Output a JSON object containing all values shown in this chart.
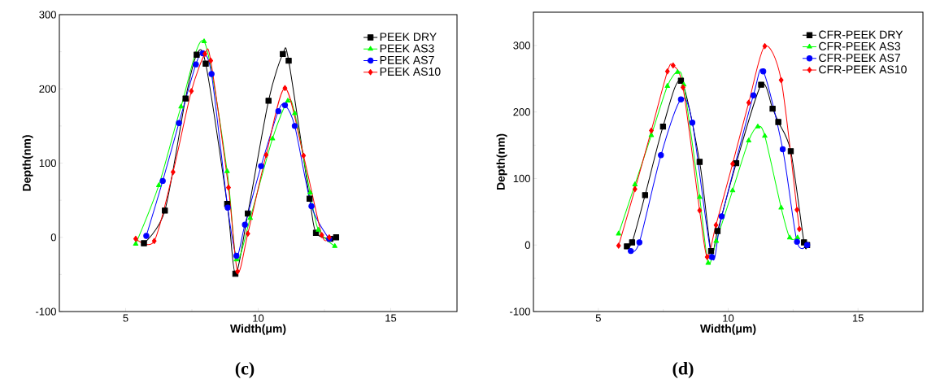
{
  "chart_data": [
    {
      "type": "line",
      "xlabel": "Width(μm)",
      "ylabel": "Depth(nm)",
      "annotations": [
        "(c)"
      ],
      "xlim": [
        2.5,
        17.5
      ],
      "ylim": [
        -100,
        300
      ],
      "xticks": [
        5,
        10,
        15
      ],
      "yticks": [
        -100,
        0,
        100,
        200,
        300
      ],
      "legend": "top right",
      "grid": false,
      "line_style": "solid",
      "series": [
        {
          "name": "PEEK DRY",
          "color": "#000000",
          "marker": "square",
          "x": [
            5.69,
            6.48,
            7.26,
            7.68,
            8.02,
            8.83,
            9.14,
            9.61,
            10.39,
            10.93,
            11.15,
            11.94,
            12.18,
            12.72,
            12.94
          ],
          "values": [
            -8,
            36,
            187,
            246,
            234,
            45,
            -49,
            32,
            184,
            247,
            238,
            52,
            6,
            -2,
            0
          ]
        },
        {
          "name": "PEEK AS3",
          "color": "#00ff00",
          "marker": "triangle",
          "x": [
            5.38,
            6.25,
            7.09,
            7.96,
            8.83,
            9.18,
            9.7,
            10.54,
            11.12,
            11.38,
            11.96,
            12.27,
            12.89
          ],
          "values": [
            -9,
            70,
            176,
            264,
            89,
            -30,
            26,
            133,
            184,
            167,
            60,
            10,
            -12
          ]
        },
        {
          "name": "PEEK AS7",
          "color": "#0000ff",
          "marker": "circle",
          "x": [
            5.78,
            6.4,
            7.01,
            7.65,
            7.91,
            8.24,
            8.85,
            9.18,
            9.5,
            10.11,
            10.76,
            11.01,
            11.38,
            12.01,
            12.68
          ],
          "values": [
            2,
            76,
            154,
            233,
            248,
            220,
            40,
            -25,
            17,
            96,
            170,
            178,
            150,
            42,
            -2
          ]
        },
        {
          "name": "PEEK AS10",
          "color": "#ff0000",
          "marker": "diamond",
          "x": [
            5.38,
            6.08,
            6.79,
            7.48,
            7.99,
            8.21,
            8.88,
            9.22,
            9.61,
            10.3,
            11.01,
            11.71,
            12.4,
            12.68
          ],
          "values": [
            -2,
            -5,
            88,
            197,
            247,
            238,
            67,
            -46,
            5,
            111,
            201,
            110,
            3,
            0
          ]
        }
      ]
    },
    {
      "type": "line",
      "xlabel": "Width(μm)",
      "ylabel": "Depth(nm)",
      "annotations": [
        "(d)"
      ],
      "xlim": [
        2.5,
        17.5
      ],
      "ylim": [
        -100,
        350
      ],
      "xticks": [
        5,
        10,
        15
      ],
      "yticks": [
        -100,
        0,
        100,
        200,
        300
      ],
      "legend": "top right",
      "grid": false,
      "line_style": "solid",
      "series": [
        {
          "name": "CFR-PEEK DRY",
          "color": "#000000",
          "marker": "square",
          "x": [
            6.1,
            6.3,
            6.8,
            7.49,
            8.18,
            8.9,
            9.34,
            9.59,
            10.31,
            11.27,
            11.71,
            11.93,
            12.41,
            12.92,
            13.04
          ],
          "values": [
            -2,
            4,
            75,
            178,
            247,
            125,
            -9,
            21,
            123,
            241,
            205,
            185,
            141,
            4,
            0
          ]
        },
        {
          "name": "CFR-PEEK AS3",
          "color": "#00ff00",
          "marker": "triangle",
          "x": [
            5.78,
            6.41,
            7.04,
            7.66,
            8.05,
            8.29,
            8.9,
            9.23,
            9.54,
            10.17,
            10.79,
            11.14,
            11.41,
            12.04,
            12.37,
            12.67
          ],
          "values": [
            17,
            91,
            165,
            239,
            260,
            241,
            72,
            -27,
            6,
            82,
            157,
            178,
            164,
            56,
            11,
            11
          ]
        },
        {
          "name": "CFR-PEEK AS7",
          "color": "#0000ff",
          "marker": "circle",
          "x": [
            6.25,
            6.58,
            7.41,
            8.18,
            8.62,
            9.37,
            9.75,
            10.97,
            11.35,
            12.1,
            12.65,
            13.04
          ],
          "values": [
            -9,
            4,
            135,
            219,
            184,
            -18,
            43,
            225,
            261,
            144,
            5,
            0
          ]
        },
        {
          "name": "CFR-PEEK AS10",
          "color": "#ff0000",
          "marker": "diamond",
          "x": [
            5.78,
            6.41,
            7.04,
            7.66,
            7.88,
            8.26,
            8.9,
            9.19,
            9.53,
            10.17,
            10.79,
            11.41,
            12.04,
            12.65,
            12.74
          ],
          "values": [
            -1,
            84,
            172,
            261,
            270,
            237,
            52,
            -18,
            30,
            122,
            214,
            299,
            248,
            53,
            24
          ]
        }
      ]
    }
  ]
}
